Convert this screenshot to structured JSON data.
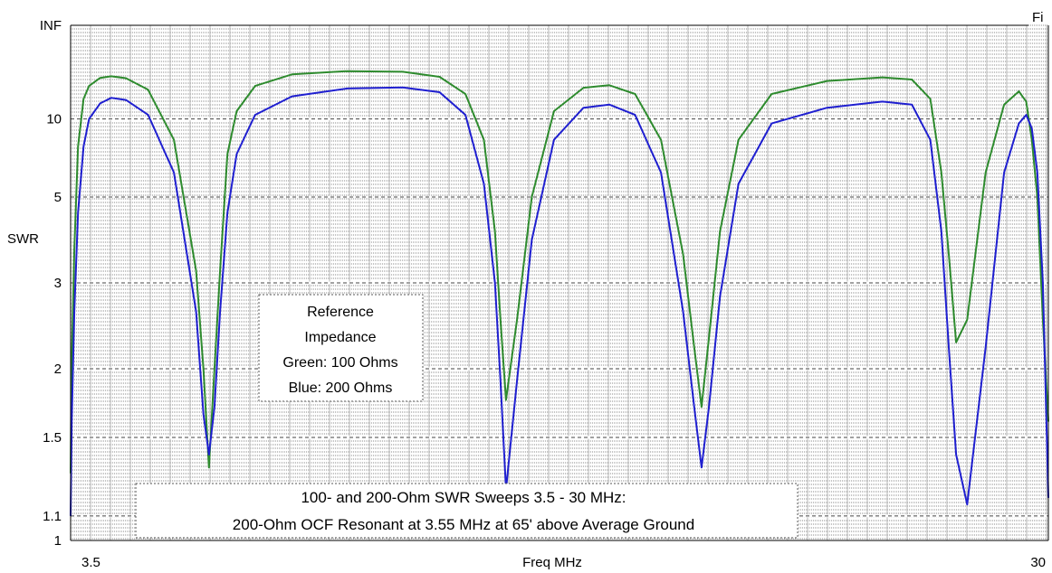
{
  "chart_data": {
    "type": "line",
    "title": "",
    "xlabel": "Freq MHz",
    "ylabel": "SWR",
    "x_ticks": [
      "3.5",
      "30"
    ],
    "y_ticks": [
      {
        "label": "INF",
        "value": "INF"
      },
      {
        "label": "10",
        "value": 10
      },
      {
        "label": "5",
        "value": 5
      },
      {
        "label": "3",
        "value": 3
      },
      {
        "label": "2",
        "value": 2
      },
      {
        "label": "1.5",
        "value": 1.5
      },
      {
        "label": "1.1",
        "value": 1.1
      },
      {
        "label": "1",
        "value": 1
      }
    ],
    "xlim": [
      3.5,
      30
    ],
    "y_scale": "reflection-coefficient",
    "grid": true,
    "corner_label": "Fi",
    "legend_box": {
      "lines": [
        "Reference",
        "Impedance",
        "Green: 100 Ohms",
        "Blue: 200 Ohms"
      ]
    },
    "caption_box": {
      "lines": [
        "100- and 200-Ohm SWR Sweeps 3.5 - 30 MHz:",
        "200-Ohm OCF Resonant at 3.55 MHz at 65' above Average Ground"
      ]
    },
    "colors": {
      "green": "#2e8b2e",
      "blue": "#1f1fd0",
      "grid": "#8a8a8a"
    },
    "series": [
      {
        "color": "green",
        "x": [
          3.5,
          3.52,
          3.6,
          3.7,
          3.85,
          4.0,
          4.3,
          4.6,
          5.0,
          5.6,
          6.3,
          6.9,
          7.1,
          7.25,
          7.4,
          7.55,
          7.75,
          8.0,
          8.5,
          9.5,
          11,
          12.5,
          13.5,
          14.2,
          14.7,
          15.0,
          15.15,
          15.3,
          15.6,
          16.0,
          16.6,
          17.4,
          18.1,
          18.8,
          19.5,
          20.1,
          20.4,
          20.6,
          20.8,
          21.1,
          21.6,
          22.5,
          24,
          25.5,
          26.3,
          26.8,
          27.1,
          27.3,
          27.5,
          27.8,
          28.3,
          28.8,
          29.2,
          29.4,
          29.55,
          29.7,
          29.85,
          30
        ],
        "y": [
          1.3,
          1.9,
          3.6,
          7.5,
          13,
          16,
          18.6,
          19.2,
          18.5,
          15,
          8,
          3.2,
          2.0,
          1.33,
          2.0,
          3.2,
          7,
          11,
          16,
          20,
          21.5,
          21.2,
          19,
          14,
          8,
          4,
          2.5,
          1.75,
          2.5,
          5,
          11,
          15.5,
          16.2,
          14,
          8,
          3.5,
          2.2,
          1.7,
          2.3,
          4,
          8,
          14,
          17.5,
          18.8,
          18,
          13,
          6,
          3.5,
          2.25,
          2.5,
          6,
          12,
          14.6,
          12.5,
          8,
          5,
          2.5,
          1.6
        ]
      },
      {
        "color": "blue",
        "x": [
          3.5,
          3.53,
          3.6,
          3.7,
          3.85,
          4.0,
          4.3,
          4.6,
          5.0,
          5.6,
          6.3,
          6.9,
          7.1,
          7.25,
          7.4,
          7.55,
          7.75,
          8.0,
          8.5,
          9.5,
          11,
          12.5,
          13.5,
          14.2,
          14.7,
          15.0,
          15.15,
          15.3,
          15.6,
          16.0,
          16.6,
          17.4,
          18.1,
          18.8,
          19.5,
          20.1,
          20.4,
          20.6,
          20.8,
          21.1,
          21.6,
          22.5,
          24,
          25.5,
          26.3,
          26.8,
          27.1,
          27.3,
          27.5,
          27.8,
          28.3,
          28.8,
          29.2,
          29.4,
          29.55,
          29.7,
          29.85,
          30
        ],
        "y": [
          1.1,
          1.6,
          2.6,
          4.5,
          7.5,
          10,
          12.2,
          13.2,
          12.8,
          10.5,
          6,
          2.6,
          1.65,
          1.4,
          1.7,
          2.6,
          4.5,
          7,
          10.5,
          13.5,
          15.3,
          15.6,
          14.4,
          10.5,
          5.5,
          3.0,
          1.9,
          1.22,
          1.9,
          3.8,
          8,
          11.5,
          12,
          10.5,
          6,
          2.6,
          1.7,
          1.33,
          1.7,
          2.8,
          5.5,
          9.5,
          11.5,
          12.5,
          12,
          8,
          4,
          2.2,
          1.4,
          1.15,
          2.2,
          6,
          9.5,
          10.5,
          9,
          6,
          3,
          1.18
        ]
      }
    ]
  }
}
